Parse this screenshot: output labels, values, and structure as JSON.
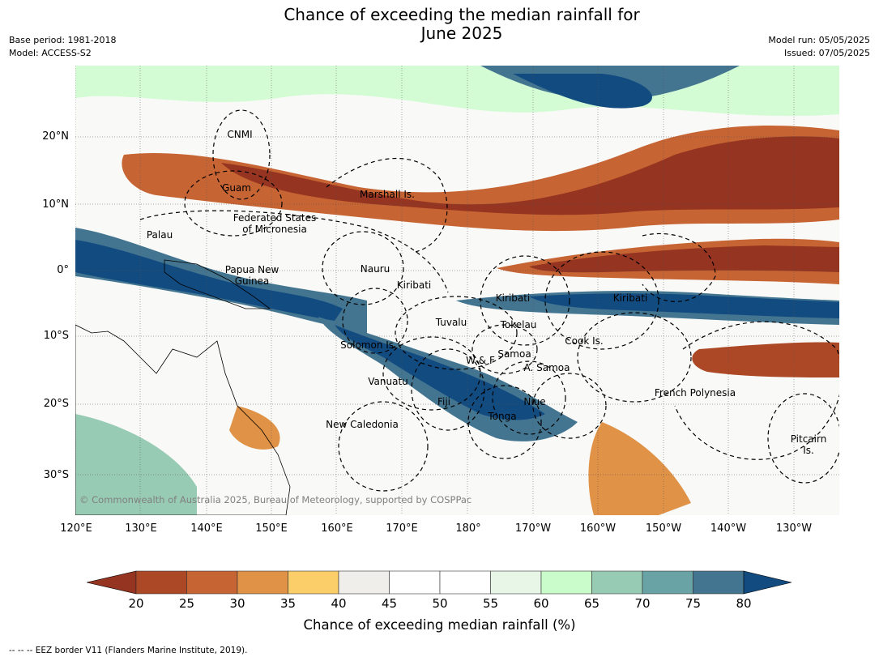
{
  "title_line1": "Chance of exceeding the median rainfall for",
  "title_line2": "June 2025",
  "base_period": "Base period: 1981-2018",
  "model": "Model: ACCESS-S2",
  "model_run": "Model run: 05/05/2025",
  "issued": "Issued: 07/05/2025",
  "lat_labels": [
    "20°N",
    "10°N",
    "0°",
    "10°S",
    "20°S",
    "30°S"
  ],
  "lon_labels": [
    "120°E",
    "130°E",
    "140°E",
    "150°E",
    "160°E",
    "170°E",
    "180°",
    "170°W",
    "160°W",
    "150°W",
    "140°W",
    "130°W"
  ],
  "regions": {
    "cnmi": "CNMI",
    "guam": "Guam",
    "marshall": "Marshall Is.",
    "fsm": "Federated States\nof Micronesia",
    "palau": "Palau",
    "png": "Papua New\nGuinea",
    "nauru": "Nauru",
    "kiribati_w": "Kiribati",
    "kiribati_c": "Kiribati",
    "kiribati_e": "Kiribati",
    "tuvalu": "Tuvalu",
    "tokelau": "Tokelau",
    "cook": "Cook Is.",
    "solomon": "Solomon Is.",
    "wf": "W & F",
    "samoa": "Samoa",
    "asamoa": "A. Samoa",
    "vanuatu": "Vanuatu",
    "fiji": "Fiji",
    "niue": "Niue",
    "tonga": "Tonga",
    "frpoly": "French Polynesia",
    "newcal": "New Caledonia",
    "pitcairn": "Pitcairn\nIs."
  },
  "copyright": "© Commonwealth of Australia 2025, Bureau of Meteorology, supported by COSPPac",
  "colorbar": {
    "ticks": [
      "20",
      "25",
      "30",
      "35",
      "40",
      "45",
      "50",
      "55",
      "60",
      "65",
      "70",
      "75",
      "80"
    ],
    "colors": [
      "#953420",
      "#ac4825",
      "#c76433",
      "#e09246",
      "#fcce6a",
      "#efeeea",
      "#ffffff",
      "#ffffff",
      "#e8f6e8",
      "#c9fcca",
      "#98cbb4",
      "#6aa3a5",
      "#437591",
      "#124b80"
    ],
    "label": "Chance of exceeding median rainfall (%)"
  },
  "footnote": "-- -- -- EEZ border V11 (Flanders Marine Institute, 2019)."
}
